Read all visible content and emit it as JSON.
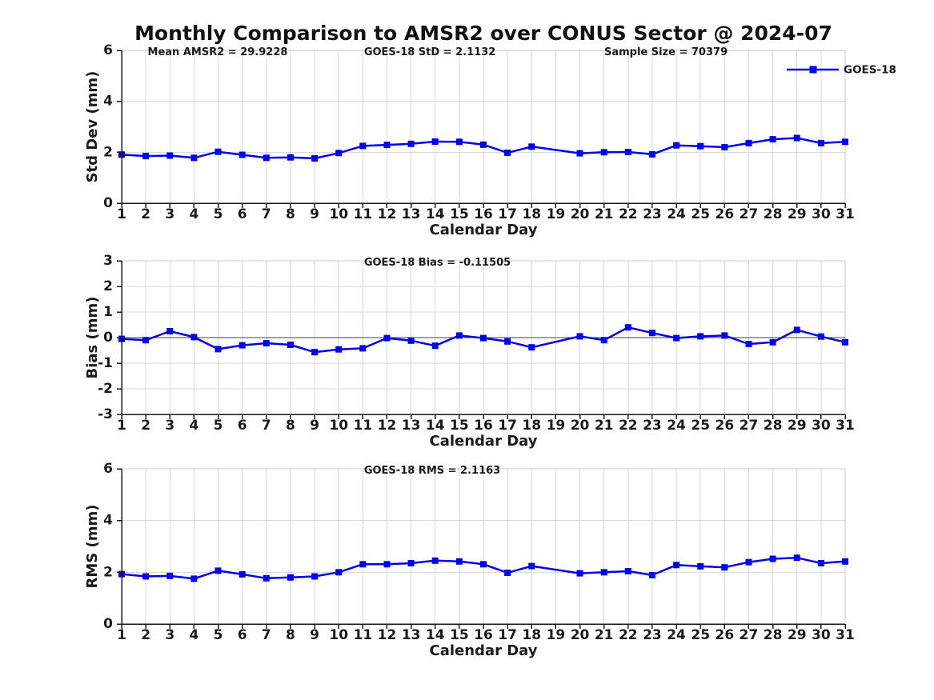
{
  "title": "Monthly Comparison to AMSR2 over CONUS Sector @ 2024-07",
  "legend": {
    "label": "GOES-18",
    "color": "#0000EE"
  },
  "chart_data": [
    {
      "type": "line",
      "name": "std-dev",
      "ylabel": "Std Dev (mm)",
      "xlabel": "Calendar Day",
      "ylim": [
        0,
        6
      ],
      "yticks": [
        0,
        2,
        4,
        6
      ],
      "grid": true,
      "zero_line": false,
      "legend_show": true,
      "annotations": [
        {
          "text": "Mean AMSR2 = 29.9228",
          "xfrac": 0.036
        },
        {
          "text": "GOES-18 StD = 2.1132",
          "xfrac": 0.335
        },
        {
          "text": "Sample Size = 70379",
          "xfrac": 0.667
        }
      ],
      "x": [
        1,
        2,
        3,
        4,
        5,
        6,
        7,
        8,
        9,
        10,
        11,
        12,
        13,
        14,
        15,
        16,
        17,
        18,
        19,
        20,
        21,
        22,
        23,
        24,
        25,
        26,
        27,
        28,
        29,
        30,
        31
      ],
      "series": [
        {
          "name": "GOES-18",
          "color": "#0000EE",
          "marker": "square",
          "values": [
            1.91,
            1.85,
            1.87,
            1.78,
            2.02,
            1.9,
            1.78,
            1.8,
            1.76,
            1.97,
            2.25,
            2.29,
            2.33,
            2.42,
            2.41,
            2.3,
            1.98,
            2.22,
            null,
            1.96,
            2.0,
            2.01,
            1.92,
            2.27,
            2.24,
            2.2,
            2.36,
            2.51,
            2.56,
            2.36,
            2.41
          ]
        }
      ]
    },
    {
      "type": "line",
      "name": "bias",
      "ylabel": "Bias (mm)",
      "xlabel": "Calendar Day",
      "ylim": [
        -3,
        3
      ],
      "yticks": [
        -3,
        -2,
        -1,
        0,
        1,
        2,
        3
      ],
      "grid": true,
      "zero_line": true,
      "legend_show": false,
      "annotations": [
        {
          "text": "GOES-18 Bias = -0.11505",
          "xfrac": 0.335
        }
      ],
      "x": [
        1,
        2,
        3,
        4,
        5,
        6,
        7,
        8,
        9,
        10,
        11,
        12,
        13,
        14,
        15,
        16,
        17,
        18,
        19,
        20,
        21,
        22,
        23,
        24,
        25,
        26,
        27,
        28,
        29,
        30,
        31
      ],
      "series": [
        {
          "name": "GOES-18",
          "color": "#0000EE",
          "marker": "square",
          "values": [
            -0.05,
            -0.1,
            0.25,
            0.02,
            -0.45,
            -0.3,
            -0.22,
            -0.28,
            -0.57,
            -0.46,
            -0.42,
            -0.02,
            -0.12,
            -0.32,
            0.08,
            -0.02,
            -0.15,
            -0.38,
            null,
            0.05,
            -0.1,
            0.4,
            0.18,
            -0.02,
            0.05,
            0.08,
            -0.25,
            -0.18,
            0.3,
            0.04,
            -0.18
          ]
        }
      ]
    },
    {
      "type": "line",
      "name": "rms",
      "ylabel": "RMS (mm)",
      "xlabel": "Calendar Day",
      "ylim": [
        0,
        6
      ],
      "yticks": [
        0,
        2,
        4,
        6
      ],
      "grid": true,
      "zero_line": false,
      "legend_show": false,
      "annotations": [
        {
          "text": "GOES-18 RMS = 2.1163",
          "xfrac": 0.335
        }
      ],
      "x": [
        1,
        2,
        3,
        4,
        5,
        6,
        7,
        8,
        9,
        10,
        11,
        12,
        13,
        14,
        15,
        16,
        17,
        18,
        19,
        20,
        21,
        22,
        23,
        24,
        25,
        26,
        27,
        28,
        29,
        30,
        31
      ],
      "series": [
        {
          "name": "GOES-18",
          "color": "#0000EE",
          "marker": "square",
          "values": [
            1.93,
            1.84,
            1.86,
            1.75,
            2.06,
            1.92,
            1.77,
            1.8,
            1.84,
            2.0,
            2.31,
            2.31,
            2.35,
            2.45,
            2.42,
            2.31,
            1.98,
            2.24,
            null,
            1.96,
            2.0,
            2.04,
            1.89,
            2.28,
            2.23,
            2.19,
            2.39,
            2.52,
            2.56,
            2.35,
            2.42
          ]
        }
      ]
    }
  ]
}
